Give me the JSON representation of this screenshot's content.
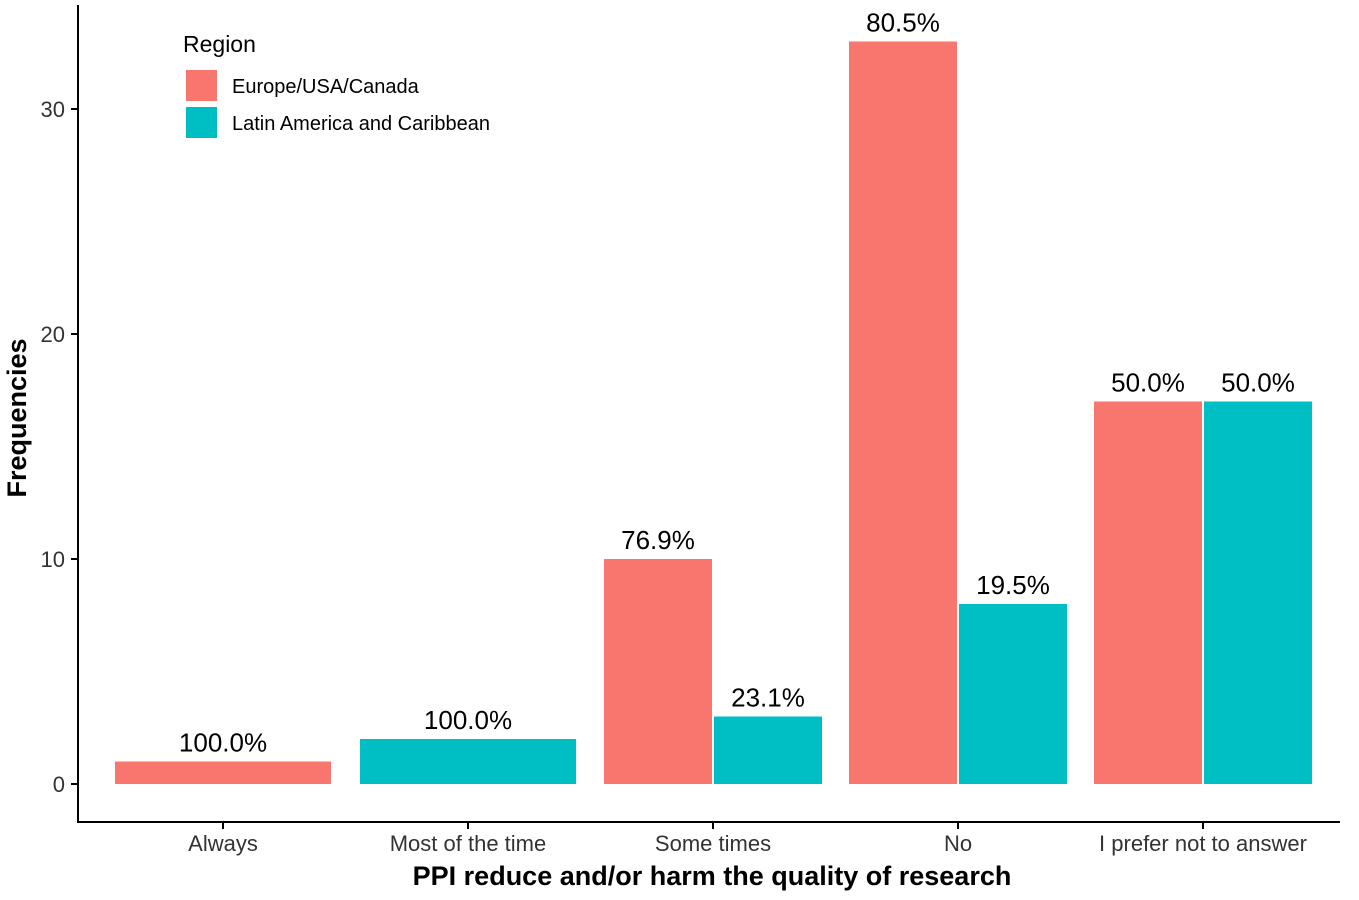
{
  "chart_data": {
    "type": "bar",
    "xlabel": "PPI reduce and/or harm the quality of research",
    "ylabel": "Frequencies",
    "ylim": [
      0,
      33
    ],
    "yticks": [
      0,
      10,
      20,
      30
    ],
    "grid": false,
    "legend": {
      "title": "Region",
      "position": "top-left"
    },
    "categories": [
      "Always",
      "Most of the time",
      "Some times",
      "No",
      "I prefer not to answer"
    ],
    "series": [
      {
        "name": "Europe/USA/Canada",
        "color": "#F8766D",
        "values": [
          1,
          0,
          10,
          33,
          17
        ],
        "labels": [
          "100.0%",
          "",
          "76.9%",
          "80.5%",
          "50.0%"
        ]
      },
      {
        "name": "Latin America and Caribbean",
        "color": "#00BFC4",
        "values": [
          0,
          2,
          3,
          8,
          17
        ],
        "labels": [
          "",
          "100.0%",
          "23.1%",
          "19.5%",
          "50.0%"
        ]
      }
    ]
  }
}
